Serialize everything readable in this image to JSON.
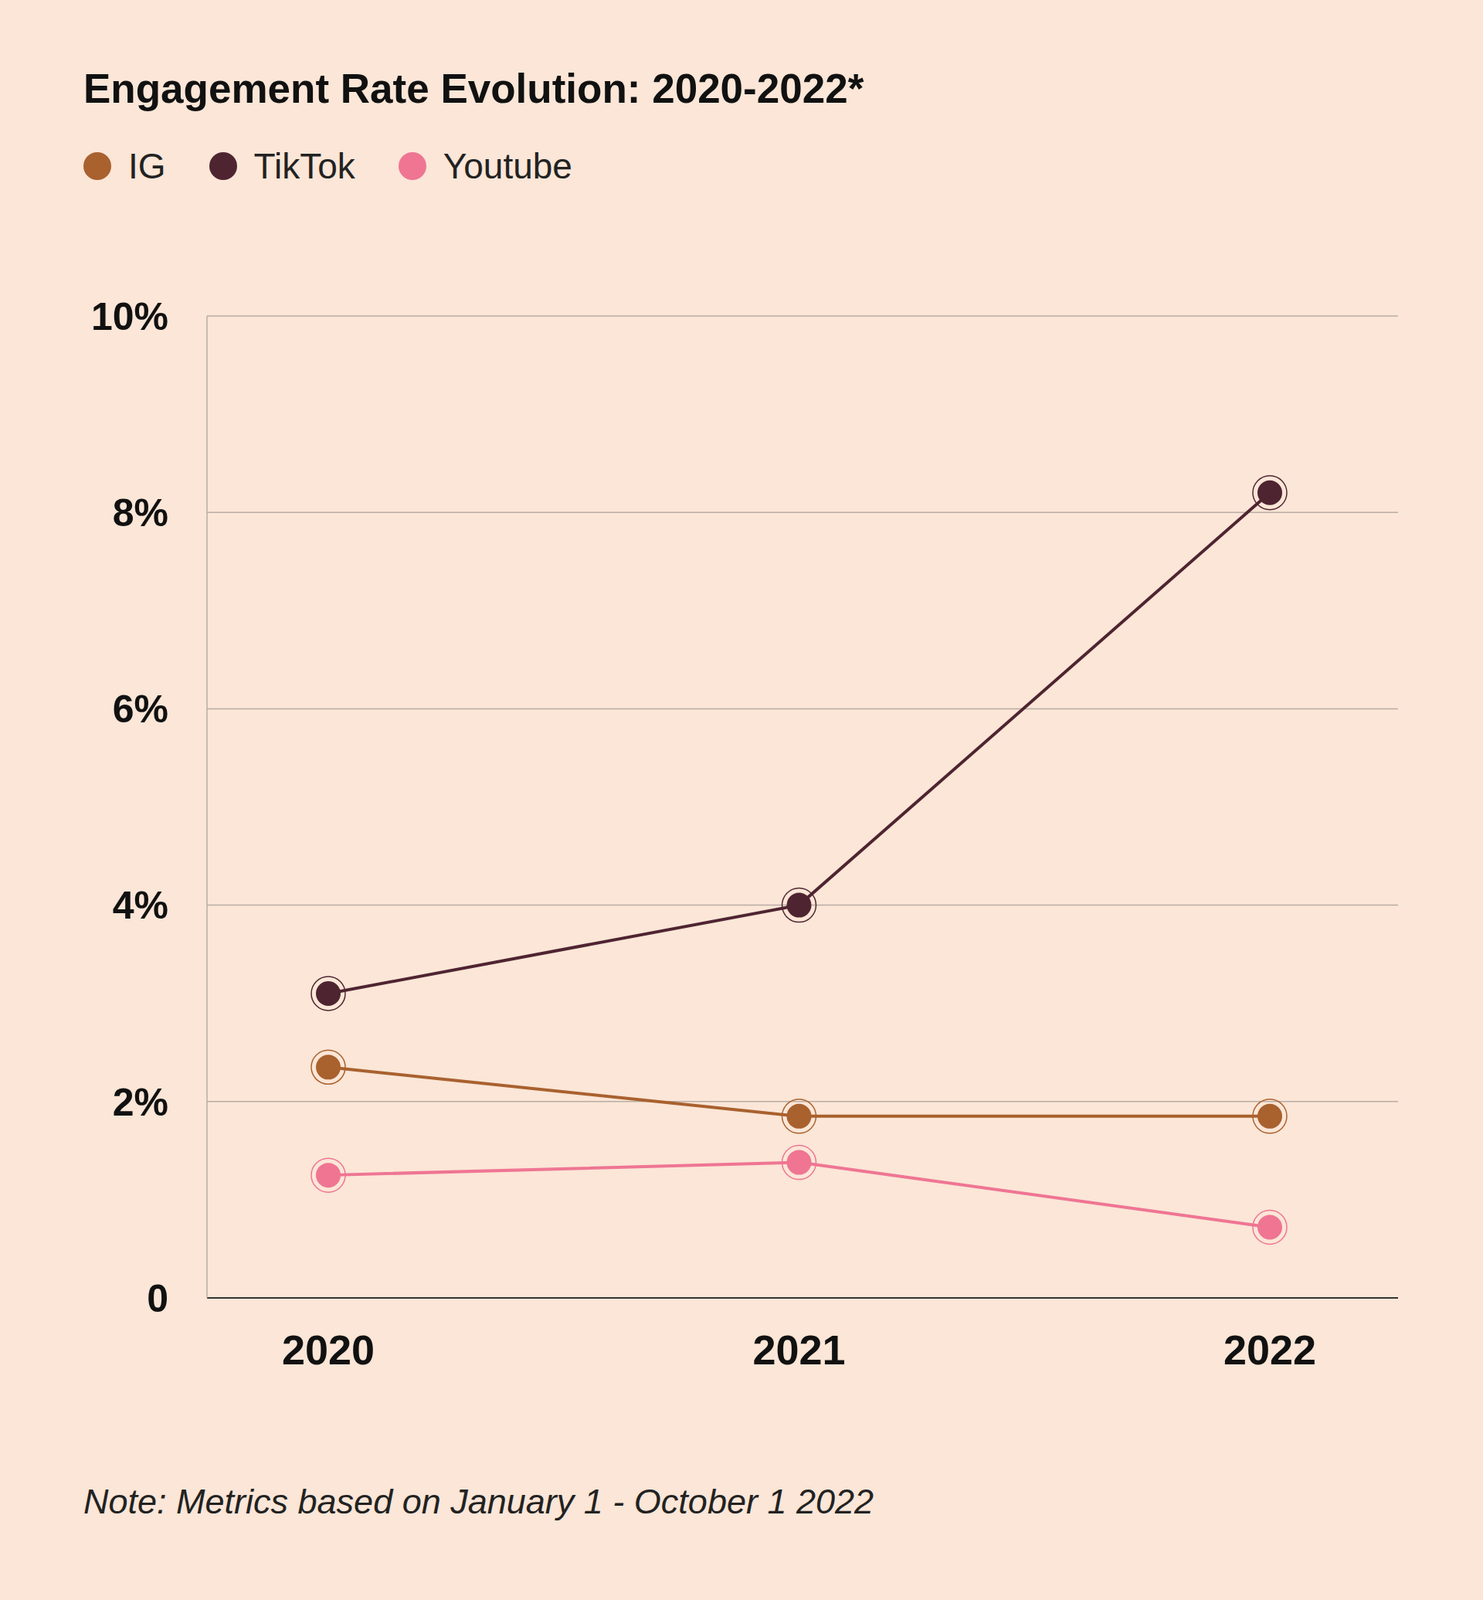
{
  "chart_data": {
    "type": "line",
    "title": "Engagement Rate Evolution: 2020-2022*",
    "categories": [
      "2020",
      "2021",
      "2022"
    ],
    "series": [
      {
        "name": "IG",
        "color": "#a9612e",
        "values": [
          2.35,
          1.85,
          1.85
        ]
      },
      {
        "name": "TikTok",
        "color": "#4f2431",
        "values": [
          3.1,
          4.0,
          8.2
        ]
      },
      {
        "name": "Youtube",
        "color": "#ef7593",
        "values": [
          1.25,
          1.38,
          0.72
        ]
      }
    ],
    "ylim": [
      0,
      10
    ],
    "yticks": [
      {
        "value": 0,
        "label": "0"
      },
      {
        "value": 2,
        "label": "2%"
      },
      {
        "value": 4,
        "label": "4%"
      },
      {
        "value": 6,
        "label": "6%"
      },
      {
        "value": 8,
        "label": "8%"
      },
      {
        "value": 10,
        "label": "10%"
      }
    ],
    "grid": true,
    "legend": "top-left",
    "marker": "circle",
    "annotations": [
      "Note: Metrics based on January 1 - October 1 2022"
    ]
  }
}
